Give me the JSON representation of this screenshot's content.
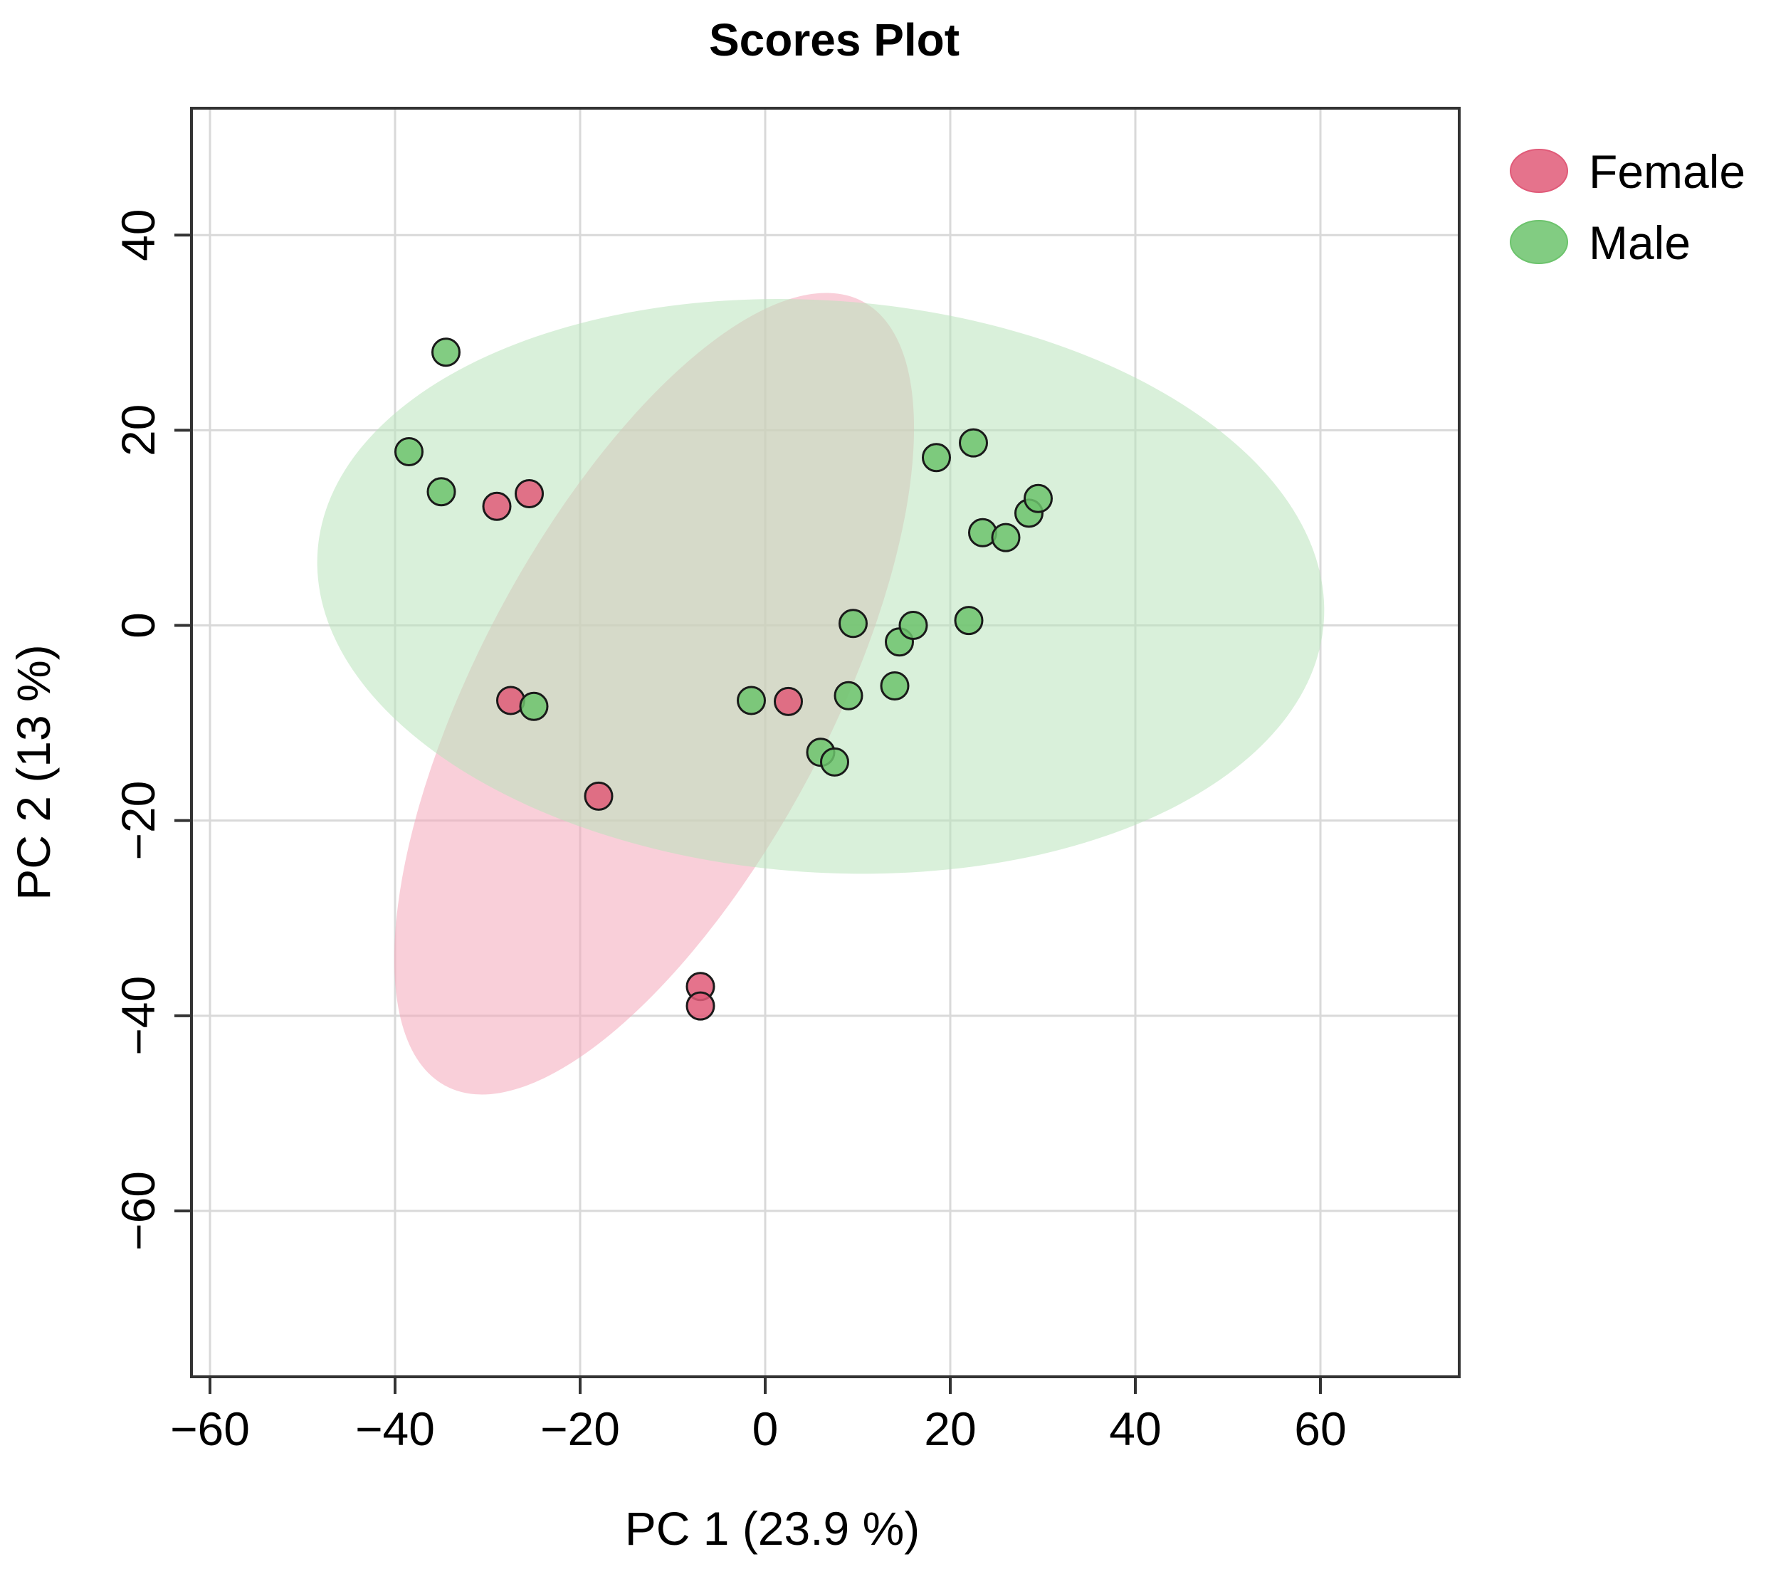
{
  "chart_data": {
    "type": "scatter",
    "title": "Scores Plot",
    "xlabel": "PC 1 (23.9 %)",
    "ylabel": "PC 2 (13 %)",
    "xlim": [
      -62,
      75
    ],
    "ylim": [
      -77,
      53
    ],
    "xticks": [
      -60,
      -40,
      -20,
      0,
      20,
      40,
      60
    ],
    "yticks": [
      40,
      20,
      0,
      -20,
      -40,
      -60
    ],
    "xtick_labels": [
      "−60",
      "−40",
      "−20",
      "0",
      "20",
      "40",
      "60"
    ],
    "ytick_labels": [
      "40",
      "20",
      "0",
      "−20",
      "−40",
      "−60"
    ],
    "grid": true,
    "legend_position": "right",
    "series": [
      {
        "name": "Female",
        "color": "#e05a78",
        "ellipse_color": "#f4a7b9",
        "ellipse": {
          "cx": -12,
          "cy": -7,
          "rx": 48,
          "ry": 18,
          "angle_deg": 62
        },
        "points": [
          {
            "x": -29,
            "y": 12.2
          },
          {
            "x": -25.5,
            "y": 13.5
          },
          {
            "x": -27.5,
            "y": -7.7
          },
          {
            "x": -18,
            "y": -17.5
          },
          {
            "x": 2.5,
            "y": -7.8
          },
          {
            "x": -7,
            "y": -37
          },
          {
            "x": -7,
            "y": -39
          }
        ]
      },
      {
        "name": "Male",
        "color": "#6cc36c",
        "ellipse_color": "#b9e3bc",
        "ellipse": {
          "cx": 6,
          "cy": 4,
          "rx": 54.5,
          "ry": 29.3,
          "angle_deg": -4
        },
        "points": [
          {
            "x": -34.5,
            "y": 28
          },
          {
            "x": -38.5,
            "y": 17.8
          },
          {
            "x": -35,
            "y": 13.7
          },
          {
            "x": -25,
            "y": -8.3
          },
          {
            "x": -1.5,
            "y": -7.7
          },
          {
            "x": 6,
            "y": -13
          },
          {
            "x": 7.5,
            "y": -14
          },
          {
            "x": 9,
            "y": -7.2
          },
          {
            "x": 9.5,
            "y": 0.2
          },
          {
            "x": 14.5,
            "y": -1.7
          },
          {
            "x": 16,
            "y": 0
          },
          {
            "x": 14,
            "y": -6.2
          },
          {
            "x": 18.5,
            "y": 17.2
          },
          {
            "x": 22.5,
            "y": 18.7
          },
          {
            "x": 22,
            "y": 0.5
          },
          {
            "x": 23.5,
            "y": 9.5
          },
          {
            "x": 26,
            "y": 9
          },
          {
            "x": 28.5,
            "y": 11.5
          },
          {
            "x": 29.5,
            "y": 13
          }
        ]
      }
    ]
  }
}
